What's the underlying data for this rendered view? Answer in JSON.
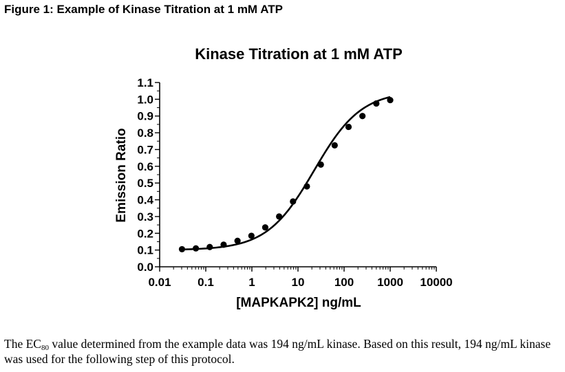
{
  "figure_caption": "Figure 1: Example of Kinase Titration at 1 mM ATP",
  "chart_data": {
    "type": "scatter",
    "title": "Kinase Titration at 1 mM ATP",
    "xlabel": "[MAPKAPK2] ng/mL",
    "ylabel": "Emission Ratio",
    "xscale": "log",
    "xlim": [
      0.01,
      10000
    ],
    "ylim": [
      0.0,
      1.1
    ],
    "xticks": [
      0.01,
      0.1,
      1,
      10,
      100,
      1000,
      10000
    ],
    "xtick_labels": [
      "0.01",
      "0.1",
      "1",
      "10",
      "100",
      "1000",
      "10000"
    ],
    "yticks": [
      0.0,
      0.1,
      0.2,
      0.3,
      0.4,
      0.5,
      0.6,
      0.7,
      0.8,
      0.9,
      1.0,
      1.1
    ],
    "ytick_labels": [
      "0.0",
      "0.1",
      "0.2",
      "0.3",
      "0.4",
      "0.5",
      "0.6",
      "0.7",
      "0.8",
      "0.9",
      "1.0",
      "1.1"
    ],
    "series": [
      {
        "name": "MAPKAPK2",
        "x": [
          0.0305,
          0.061,
          0.122,
          0.244,
          0.488,
          0.977,
          1.95,
          3.9,
          7.8,
          15.6,
          31.3,
          62.5,
          125,
          250,
          500,
          1000
        ],
        "y": [
          0.105,
          0.11,
          0.118,
          0.132,
          0.155,
          0.185,
          0.235,
          0.3,
          0.39,
          0.48,
          0.61,
          0.725,
          0.835,
          0.9,
          0.975,
          0.995
        ]
      }
    ],
    "fit": {
      "type": "sigmoidal dose-response",
      "bottom": 0.1,
      "top": 1.05,
      "log_ec50": 1.35,
      "hill": 0.85
    },
    "grid": false,
    "legend": "none"
  },
  "paragraph": {
    "part1": "The EC",
    "sub": "80",
    "part2": " value determined from the example data was 194 ng/mL kinase.  Based on this result, 194 ng/mL kinase was used for the following step of this protocol."
  }
}
